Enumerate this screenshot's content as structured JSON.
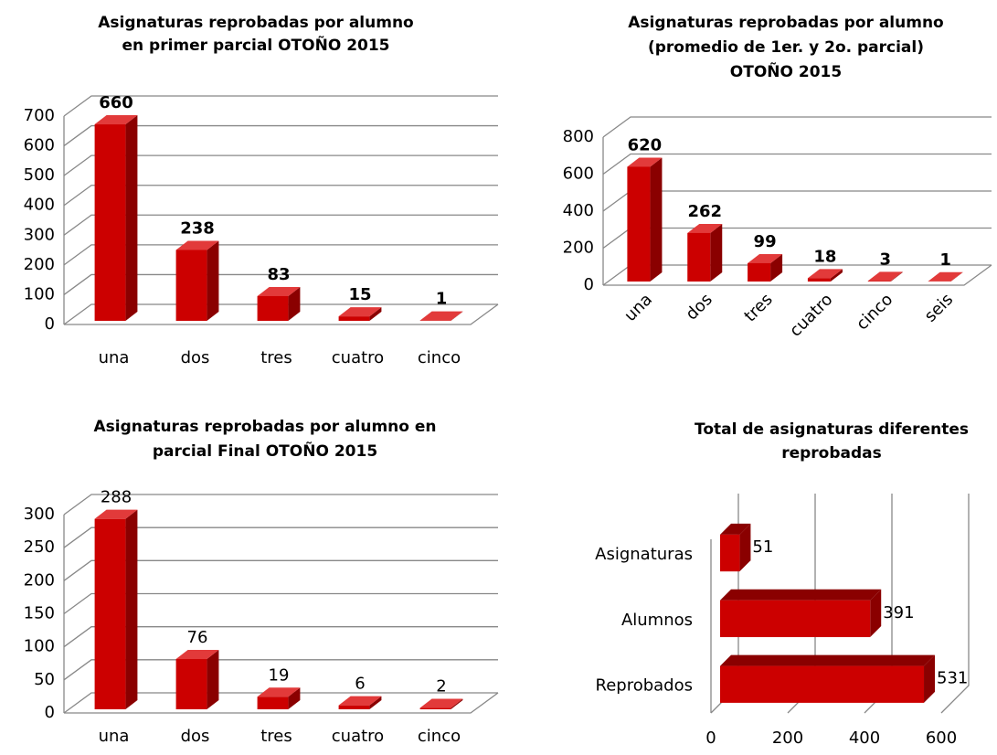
{
  "chart_data": [
    {
      "type": "bar3d",
      "title": [
        "Asignaturas reprobadas por alumno",
        "en primer parcial OTOÑO 2015"
      ],
      "categories": [
        "una",
        "dos",
        "tres",
        "cuatro",
        "cinco"
      ],
      "values": [
        660,
        238,
        83,
        15,
        1
      ],
      "color": "#cc0000",
      "ylim": [
        0,
        700
      ],
      "yticks": [
        0,
        100,
        200,
        300,
        400,
        500,
        600,
        700
      ],
      "grid": true
    },
    {
      "type": "bar3d",
      "title": [
        "Asignaturas reprobadas por alumno",
        "(promedio de 1er. y 2o. parcial)",
        "OTOÑO 2015"
      ],
      "categories": [
        "una",
        "dos",
        "tres",
        "cuatro",
        "cinco",
        "seis"
      ],
      "values": [
        620,
        262,
        99,
        18,
        3,
        1
      ],
      "color": "#cc0000",
      "ylim": [
        0,
        800
      ],
      "yticks": [
        0,
        200,
        400,
        600,
        800
      ],
      "grid": true
    },
    {
      "type": "bar3d",
      "title": [
        "Asignaturas reprobadas por alumno en",
        "parcial Final OTOÑO 2015"
      ],
      "categories": [
        "una",
        "dos",
        "tres",
        "cuatro",
        "cinco"
      ],
      "values": [
        288,
        76,
        19,
        6,
        2
      ],
      "color": "#cc0000",
      "ylim": [
        0,
        300
      ],
      "yticks": [
        0,
        50,
        100,
        150,
        200,
        250,
        300
      ],
      "grid": true
    },
    {
      "type": "hbar3d",
      "title": [
        "Total de asignaturas diferentes",
        "reprobadas"
      ],
      "categories": [
        "Asignaturas",
        "Alumnos",
        "Reprobados"
      ],
      "values": [
        51,
        391,
        531
      ],
      "color": "#cc0000",
      "xlim": [
        0,
        600
      ],
      "xticks": [
        0,
        200,
        400,
        600
      ],
      "grid": true
    }
  ]
}
